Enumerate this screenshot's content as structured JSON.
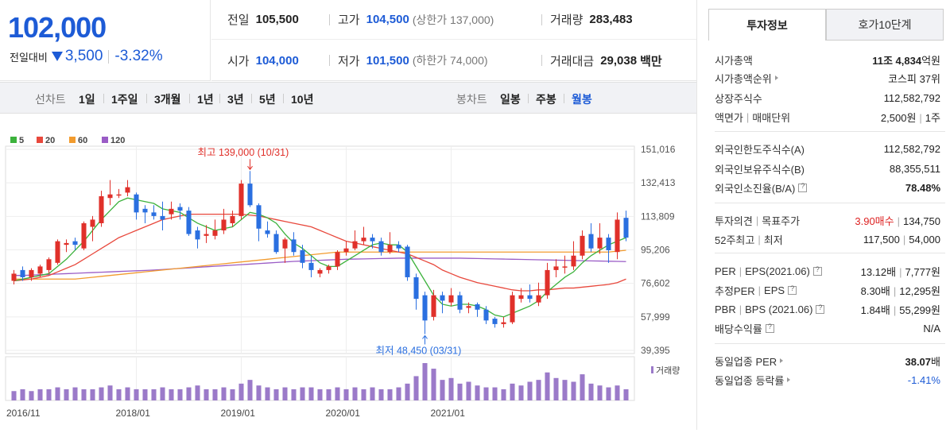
{
  "header": {
    "current_price": "102,000",
    "change_label": "전일대비",
    "change_value": "3,500",
    "change_pct": "-3.32%"
  },
  "stats": {
    "prev_close_label": "전일",
    "prev_close": "105,500",
    "high_label": "고가",
    "high": "104,500",
    "upper_limit": "(상한가 137,000)",
    "volume_label": "거래량",
    "volume": "283,483",
    "open_label": "시가",
    "open": "104,000",
    "low_label": "저가",
    "low": "101,500",
    "lower_limit": "(하한가 74,000)",
    "trade_amount_label": "거래대금",
    "trade_amount": "29,038",
    "trade_amount_unit": "백만"
  },
  "toolbar": {
    "line_chart_label": "선차트",
    "line_periods": [
      "1일",
      "1주일",
      "3개월",
      "1년",
      "3년",
      "5년",
      "10년"
    ],
    "candle_chart_label": "봉차트",
    "candle_periods": [
      "일봉",
      "주봉",
      "월봉"
    ],
    "active_candle": "월봉"
  },
  "chart_data": {
    "type": "candlestick",
    "legend": [
      {
        "name": "5",
        "color": "#3cb23c"
      },
      {
        "name": "20",
        "color": "#e8483c"
      },
      {
        "name": "60",
        "color": "#f29b2e"
      },
      {
        "name": "120",
        "color": "#9a5cc6"
      }
    ],
    "y_ticks": [
      "151,016",
      "132,413",
      "113,809",
      "95,206",
      "76,602",
      "57,999",
      "39,395"
    ],
    "ylim": [
      39395,
      151016
    ],
    "x_ticks": [
      "2016/11",
      "2018/01",
      "2019/01",
      "2020/01",
      "2021/01"
    ],
    "max_annotation": "최고 139,000 (10/31)",
    "min_annotation": "최저 48,450 (03/31)",
    "volume_label": "거래량",
    "candles": [
      {
        "o": 78000,
        "c": 82000,
        "h": 84000,
        "l": 76000
      },
      {
        "o": 84000,
        "c": 80000,
        "h": 86000,
        "l": 78000
      },
      {
        "o": 80000,
        "c": 84000,
        "h": 85000,
        "l": 78000
      },
      {
        "o": 82000,
        "c": 86000,
        "h": 87000,
        "l": 80000
      },
      {
        "o": 84000,
        "c": 90000,
        "h": 91000,
        "l": 82000
      },
      {
        "o": 88000,
        "c": 100000,
        "h": 101000,
        "l": 87000
      },
      {
        "o": 98000,
        "c": 99000,
        "h": 101000,
        "l": 94000
      },
      {
        "o": 100000,
        "c": 98000,
        "h": 102000,
        "l": 95000
      },
      {
        "o": 96000,
        "c": 110000,
        "h": 111000,
        "l": 95000
      },
      {
        "o": 108000,
        "c": 112000,
        "h": 114000,
        "l": 100000
      },
      {
        "o": 110000,
        "c": 125000,
        "h": 128000,
        "l": 108000
      },
      {
        "o": 124000,
        "c": 126000,
        "h": 134000,
        "l": 120000
      },
      {
        "o": 126000,
        "c": 126000,
        "h": 129000,
        "l": 124000
      },
      {
        "o": 127000,
        "c": 130000,
        "h": 134000,
        "l": 125000
      },
      {
        "o": 126000,
        "c": 116000,
        "h": 127000,
        "l": 112000
      },
      {
        "o": 118000,
        "c": 116000,
        "h": 120000,
        "l": 110000
      },
      {
        "o": 116000,
        "c": 114000,
        "h": 120000,
        "l": 112000
      },
      {
        "o": 114000,
        "c": 112000,
        "h": 122000,
        "l": 106000
      },
      {
        "o": 115000,
        "c": 118000,
        "h": 122000,
        "l": 112000
      },
      {
        "o": 119000,
        "c": 117000,
        "h": 121000,
        "l": 112000
      },
      {
        "o": 117000,
        "c": 104000,
        "h": 119000,
        "l": 103000
      },
      {
        "o": 106000,
        "c": 101000,
        "h": 108000,
        "l": 96000
      },
      {
        "o": 103000,
        "c": 104000,
        "h": 109000,
        "l": 99000
      },
      {
        "o": 103000,
        "c": 106000,
        "h": 112000,
        "l": 101000
      },
      {
        "o": 106000,
        "c": 112000,
        "h": 118000,
        "l": 104000
      },
      {
        "o": 110000,
        "c": 114000,
        "h": 117000,
        "l": 108000
      },
      {
        "o": 114000,
        "c": 132000,
        "h": 134000,
        "l": 112000
      },
      {
        "o": 132000,
        "c": 120000,
        "h": 139000,
        "l": 119000
      },
      {
        "o": 120000,
        "c": 107000,
        "h": 121000,
        "l": 100000
      },
      {
        "o": 106000,
        "c": 104000,
        "h": 111000,
        "l": 102000
      },
      {
        "o": 104000,
        "c": 94000,
        "h": 106000,
        "l": 93000
      },
      {
        "o": 96000,
        "c": 101000,
        "h": 102000,
        "l": 88000
      },
      {
        "o": 101000,
        "c": 94000,
        "h": 105000,
        "l": 92000
      },
      {
        "o": 95000,
        "c": 88000,
        "h": 98000,
        "l": 85000
      },
      {
        "o": 88000,
        "c": 84000,
        "h": 92000,
        "l": 80000
      },
      {
        "o": 82000,
        "c": 84000,
        "h": 85000,
        "l": 80000
      },
      {
        "o": 84000,
        "c": 86000,
        "h": 87000,
        "l": 82000
      },
      {
        "o": 86000,
        "c": 94000,
        "h": 95000,
        "l": 84000
      },
      {
        "o": 94000,
        "c": 96000,
        "h": 100000,
        "l": 92000
      },
      {
        "o": 96000,
        "c": 100000,
        "h": 106000,
        "l": 95000
      },
      {
        "o": 100000,
        "c": 102000,
        "h": 108000,
        "l": 98000
      },
      {
        "o": 102000,
        "c": 100000,
        "h": 104000,
        "l": 96000
      },
      {
        "o": 100000,
        "c": 94000,
        "h": 102000,
        "l": 92000
      },
      {
        "o": 94000,
        "c": 98000,
        "h": 105000,
        "l": 93000
      },
      {
        "o": 98000,
        "c": 96000,
        "h": 100000,
        "l": 94000
      },
      {
        "o": 97000,
        "c": 80000,
        "h": 98000,
        "l": 78000
      },
      {
        "o": 80000,
        "c": 68000,
        "h": 82000,
        "l": 62000
      },
      {
        "o": 70000,
        "c": 56000,
        "h": 72000,
        "l": 48450
      },
      {
        "o": 58000,
        "c": 70000,
        "h": 73000,
        "l": 56000
      },
      {
        "o": 70000,
        "c": 67000,
        "h": 72000,
        "l": 60000
      },
      {
        "o": 66000,
        "c": 70000,
        "h": 74000,
        "l": 64000
      },
      {
        "o": 70000,
        "c": 62000,
        "h": 72000,
        "l": 60000
      },
      {
        "o": 63000,
        "c": 64000,
        "h": 66000,
        "l": 60000
      },
      {
        "o": 65000,
        "c": 62000,
        "h": 66000,
        "l": 58000
      },
      {
        "o": 62000,
        "c": 56000,
        "h": 64000,
        "l": 54000
      },
      {
        "o": 57000,
        "c": 54000,
        "h": 58000,
        "l": 52000
      },
      {
        "o": 54000,
        "c": 55000,
        "h": 58000,
        "l": 52000
      },
      {
        "o": 55000,
        "c": 70000,
        "h": 72000,
        "l": 54000
      },
      {
        "o": 68000,
        "c": 70000,
        "h": 74000,
        "l": 66000
      },
      {
        "o": 70000,
        "c": 68000,
        "h": 76000,
        "l": 66000
      },
      {
        "o": 66000,
        "c": 70000,
        "h": 77000,
        "l": 64000
      },
      {
        "o": 70000,
        "c": 84000,
        "h": 88000,
        "l": 68000
      },
      {
        "o": 84000,
        "c": 86000,
        "h": 90000,
        "l": 80000
      },
      {
        "o": 86000,
        "c": 86000,
        "h": 92000,
        "l": 82000
      },
      {
        "o": 86000,
        "c": 92000,
        "h": 100000,
        "l": 84000
      },
      {
        "o": 92000,
        "c": 103000,
        "h": 106000,
        "l": 90000
      },
      {
        "o": 104000,
        "c": 96000,
        "h": 110000,
        "l": 94000
      },
      {
        "o": 96000,
        "c": 102000,
        "h": 110000,
        "l": 93000
      },
      {
        "o": 102000,
        "c": 95000,
        "h": 104000,
        "l": 88000
      },
      {
        "o": 94000,
        "c": 112000,
        "h": 116000,
        "l": 90000
      },
      {
        "o": 113000,
        "c": 102000,
        "h": 117000,
        "l": 100000
      }
    ],
    "ma5": [
      78000,
      79000,
      80000,
      81000,
      82000,
      86000,
      90000,
      95000,
      100000,
      106000,
      112000,
      117000,
      122000,
      124000,
      123000,
      122000,
      121000,
      118000,
      117000,
      116000,
      113000,
      110000,
      108000,
      106000,
      107000,
      108000,
      112000,
      116000,
      115000,
      113000,
      110000,
      104000,
      99000,
      96000,
      92000,
      88000,
      86000,
      86000,
      89000,
      92000,
      95000,
      98000,
      99000,
      98000,
      98000,
      94000,
      86000,
      78000,
      70000,
      65000,
      64000,
      65000,
      65000,
      64000,
      62000,
      59000,
      58000,
      60000,
      62000,
      64000,
      67000,
      72000,
      76000,
      80000,
      83000,
      88000,
      92000,
      95000,
      98000,
      100000,
      102000
    ],
    "ma20": [
      78000,
      78500,
      79000,
      80000,
      81000,
      83000,
      85000,
      87000,
      90000,
      93000,
      96000,
      99000,
      102000,
      104000,
      106000,
      108000,
      110000,
      112000,
      113000,
      114000,
      115000,
      115000,
      115000,
      115000,
      115000,
      115000,
      115000,
      114500,
      114000,
      113000,
      112000,
      111000,
      110000,
      109000,
      108000,
      106000,
      104000,
      102000,
      100000,
      99000,
      98000,
      97000,
      96000,
      95000,
      94000,
      93000,
      91000,
      89000,
      87000,
      84000,
      82000,
      80000,
      78500,
      77000,
      76000,
      75000,
      74000,
      73000,
      72500,
      72500,
      73000,
      73000,
      73500,
      74000,
      74000,
      74500,
      75000,
      75500,
      76000,
      77000,
      79000
    ],
    "ma60": [
      79000,
      79000,
      79000,
      79000,
      79000,
      79000,
      79000,
      79000,
      79500,
      80000,
      80500,
      81000,
      81500,
      82000,
      82500,
      83000,
      83500,
      84000,
      84500,
      85000,
      85500,
      86000,
      86500,
      87000,
      87500,
      88000,
      88500,
      89000,
      89500,
      90000,
      90500,
      91000,
      91500,
      92000,
      92500,
      93000,
      93500,
      94000,
      94000,
      94000,
      94000,
      94000,
      94000,
      94000,
      94000,
      94000,
      94000,
      94000,
      94000,
      94000,
      94000,
      94000,
      94000,
      94000,
      94000,
      94000,
      94000,
      94000,
      94000,
      94000,
      94000,
      94000,
      94000,
      94000,
      94000,
      94000,
      94000,
      94000,
      94000,
      94500,
      95000
    ],
    "ma120": [
      81000,
      81000,
      81200,
      81400,
      81600,
      81800,
      82000,
      82200,
      82400,
      82600,
      82800,
      83000,
      83200,
      83400,
      83600,
      83800,
      84000,
      84300,
      84600,
      84900,
      85200,
      85500,
      85800,
      86100,
      86400,
      86700,
      87000,
      87300,
      87600,
      87900,
      88200,
      88500,
      88800,
      89000,
      89200,
      89400,
      89600,
      89800,
      90000,
      90100,
      90200,
      90300,
      90400,
      90500,
      90600,
      90600,
      90600,
      90600,
      90600,
      90600,
      90600,
      90600,
      90500,
      90400,
      90300,
      90200,
      90100,
      90000,
      89900,
      89800,
      89700,
      89600,
      89500,
      89400,
      89300,
      89200,
      89100,
      89000,
      88900,
      88800,
      88700
    ],
    "volume": [
      0.25,
      0.3,
      0.25,
      0.3,
      0.3,
      0.35,
      0.3,
      0.35,
      0.3,
      0.3,
      0.35,
      0.4,
      0.3,
      0.35,
      0.3,
      0.3,
      0.3,
      0.35,
      0.3,
      0.3,
      0.35,
      0.4,
      0.3,
      0.3,
      0.35,
      0.3,
      0.45,
      0.55,
      0.4,
      0.35,
      0.3,
      0.35,
      0.3,
      0.35,
      0.35,
      0.3,
      0.3,
      0.35,
      0.3,
      0.35,
      0.3,
      0.35,
      0.3,
      0.3,
      0.35,
      0.45,
      0.65,
      1.0,
      0.85,
      0.55,
      0.6,
      0.45,
      0.5,
      0.4,
      0.35,
      0.35,
      0.3,
      0.45,
      0.4,
      0.5,
      0.55,
      0.75,
      0.6,
      0.55,
      0.5,
      0.7,
      0.45,
      0.4,
      0.35,
      0.4,
      0.3
    ]
  },
  "right_panel": {
    "tab_active": "투자정보",
    "tab_inactive": "호가10단계",
    "rows": {
      "market_cap_label": "시가총액",
      "market_cap_a": "11조",
      "market_cap_b": "4,834",
      "market_cap_unit": "억원",
      "market_cap_rank_label": "시가총액순위",
      "market_cap_rank": "코스피 37위",
      "listed_shares_label": "상장주식수",
      "listed_shares": "112,582,792",
      "face_value_label": "액면가",
      "trade_unit_label": "매매단위",
      "face_value": "2,500원",
      "trade_unit": "1주",
      "foreign_limit_label": "외국인한도주식수(A)",
      "foreign_limit": "112,582,792",
      "foreign_hold_label": "외국인보유주식수(B)",
      "foreign_hold": "88,355,511",
      "foreign_ratio_label": "외국인소진율(B/A)",
      "foreign_ratio": "78.48%",
      "opinion_label": "투자의견",
      "target_label": "목표주가",
      "opinion": "3.90매수",
      "target": "134,750",
      "wk52_label": "52주최고",
      "wk52_low_label": "최저",
      "wk52_high": "117,500",
      "wk52_low": "54,000",
      "per_label": "PER",
      "eps_label": "EPS(2021.06)",
      "per": "13.12배",
      "eps": "7,777원",
      "est_per_label": "추정PER",
      "est_eps_label": "EPS",
      "est_per": "8.30배",
      "est_eps": "12,295원",
      "pbr_label": "PBR",
      "bps_label": "BPS (2021.06)",
      "pbr": "1.84배",
      "bps": "55,299원",
      "div_label": "배당수익률",
      "div": "N/A",
      "sector_per_label": "동일업종 PER",
      "sector_per": "38.07",
      "sector_per_unit": "배",
      "sector_chg_label": "동일업종 등락률",
      "sector_chg": "-1.41%"
    }
  }
}
